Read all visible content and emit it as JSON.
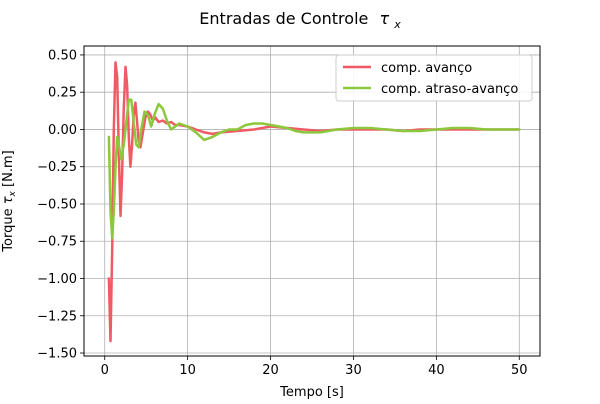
{
  "chart_data": {
    "type": "line",
    "title": "Entradas de Controle",
    "title_symbol": "τ",
    "title_subscript": "x",
    "xlabel": "Tempo [s]",
    "ylabel_prefix": "Torque ",
    "ylabel_symbol": "τ",
    "ylabel_subscript": "x",
    "ylabel_suffix": " [N.m]",
    "xlim": [
      -2.5,
      52.5
    ],
    "ylim": [
      -1.52,
      0.56
    ],
    "xticks": [
      0,
      10,
      20,
      30,
      40,
      50
    ],
    "xtick_labels": [
      "0",
      "10",
      "20",
      "30",
      "40",
      "50"
    ],
    "yticks": [
      -1.5,
      -1.25,
      -1.0,
      -0.75,
      -0.5,
      -0.25,
      0.0,
      0.25,
      0.5
    ],
    "ytick_labels": [
      "−1.50",
      "−1.25",
      "−1.00",
      "−0.75",
      "−0.50",
      "−0.25",
      "0.00",
      "0.25",
      "0.50"
    ],
    "grid": true,
    "legend_position": "top-right",
    "series": [
      {
        "name": "comp. avanço",
        "color": "#f05a64",
        "x": [
          0.5,
          0.7,
          0.9,
          1.1,
          1.3,
          1.5,
          1.7,
          1.9,
          2.1,
          2.3,
          2.5,
          2.7,
          2.9,
          3.1,
          3.3,
          3.5,
          3.7,
          3.9,
          4.1,
          4.3,
          4.6,
          4.9,
          5.2,
          5.5,
          5.8,
          6.1,
          6.5,
          7.0,
          7.5,
          8.0,
          8.5,
          9.0,
          10.0,
          11.0,
          12.0,
          13.0,
          14.0,
          16.0,
          18.0,
          20.0,
          22.0,
          24.0,
          26.0,
          28.0,
          30.0,
          32.0,
          34.0,
          36.0,
          38.0,
          40.0,
          42.0,
          44.0,
          46.0,
          48.0,
          50.0
        ],
        "y": [
          -1.0,
          -1.42,
          -0.8,
          0.0,
          0.45,
          0.35,
          -0.15,
          -0.58,
          -0.3,
          0.15,
          0.42,
          0.3,
          -0.05,
          -0.25,
          -0.1,
          0.1,
          0.18,
          0.05,
          -0.08,
          -0.12,
          -0.02,
          0.08,
          0.12,
          0.1,
          0.06,
          0.08,
          0.05,
          0.06,
          0.04,
          0.05,
          0.03,
          0.03,
          0.02,
          0.0,
          -0.02,
          -0.03,
          -0.02,
          -0.01,
          0.0,
          0.02,
          0.01,
          0.0,
          -0.01,
          0.0,
          0.0,
          0.0,
          0.0,
          -0.01,
          0.0,
          0.0,
          0.0,
          0.0,
          0.0,
          0.0,
          0.0
        ]
      },
      {
        "name": "comp. atraso-avanço",
        "color": "#8cc83c",
        "x": [
          0.5,
          0.7,
          0.9,
          1.1,
          1.3,
          1.5,
          1.7,
          2.0,
          2.3,
          2.6,
          2.9,
          3.2,
          3.5,
          3.8,
          4.1,
          4.4,
          4.8,
          5.2,
          5.6,
          6.0,
          6.5,
          7.0,
          7.5,
          8.0,
          8.5,
          9.0,
          10.0,
          11.0,
          12.0,
          13.0,
          14.0,
          15.0,
          16.0,
          17.0,
          18.0,
          19.0,
          20.0,
          21.0,
          22.0,
          23.0,
          24.0,
          25.0,
          26.0,
          28.0,
          30.0,
          32.0,
          34.0,
          36.0,
          38.0,
          40.0,
          42.0,
          44.0,
          46.0,
          48.0,
          50.0
        ],
        "y": [
          -0.05,
          -0.55,
          -0.73,
          -0.55,
          -0.25,
          -0.05,
          -0.1,
          -0.2,
          -0.1,
          0.05,
          0.2,
          0.2,
          0.05,
          -0.1,
          -0.12,
          0.0,
          0.12,
          0.1,
          0.02,
          0.1,
          0.17,
          0.14,
          0.06,
          0.0,
          0.02,
          0.04,
          0.02,
          -0.02,
          -0.07,
          -0.05,
          -0.02,
          0.0,
          0.0,
          0.03,
          0.04,
          0.04,
          0.03,
          0.02,
          0.01,
          -0.01,
          -0.02,
          -0.02,
          -0.02,
          0.0,
          0.01,
          0.01,
          0.0,
          -0.01,
          -0.01,
          0.0,
          0.01,
          0.01,
          0.0,
          0.0,
          0.0
        ]
      }
    ]
  }
}
